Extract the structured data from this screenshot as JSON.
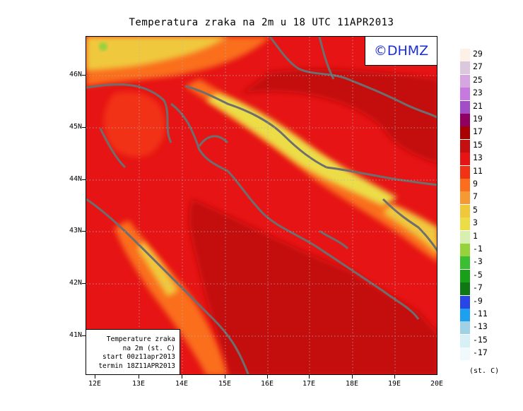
{
  "title": "Temperatura zraka na 2m u 18 UTC 11APR2013",
  "badge": "©DHMZ",
  "info_box": {
    "line1": "Temperature zraka",
    "line2": "na 2m (st. C)",
    "line3": "start 00z11apr2013",
    "line4": "termin 18Z11APR2013"
  },
  "lat_ticks": [
    "46N",
    "45N",
    "44N",
    "43N",
    "42N",
    "41N"
  ],
  "lon_ticks": [
    "12E",
    "13E",
    "14E",
    "15E",
    "16E",
    "17E",
    "18E",
    "19E",
    "20E"
  ],
  "legend": {
    "labels": [
      "29",
      "27",
      "25",
      "23",
      "21",
      "19",
      "17",
      "15",
      "13",
      "11",
      "9",
      "7",
      "5",
      "3",
      "1",
      "-1",
      "-3",
      "-5",
      "-7",
      "-9",
      "-11",
      "-13",
      "-15",
      "-17"
    ],
    "colors": [
      "#fdf0e6",
      "#dcc8dc",
      "#d6a6e0",
      "#c679de",
      "#a24ec8",
      "#900060",
      "#a90000",
      "#c41010",
      "#e61414",
      "#f23214",
      "#fa6e1e",
      "#f59a32",
      "#f0c83c",
      "#ecdd46",
      "#d7efaf",
      "#96d23c",
      "#3cbe32",
      "#19a019",
      "#0f7814",
      "#2846e6",
      "#1ea0f0",
      "#a0d2e6",
      "#d7f0f5",
      "#f0fafc"
    ],
    "unit": "(st. C)"
  }
}
